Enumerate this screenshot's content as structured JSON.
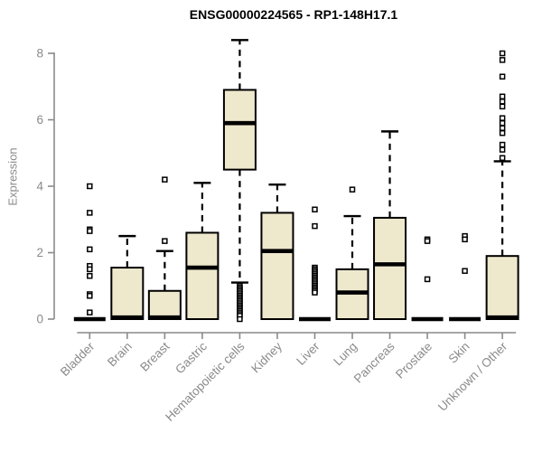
{
  "chart_data": {
    "type": "boxplot",
    "title": "ENSG00000224565 - RP1-148H17.1",
    "ylabel": "Expression",
    "xlabel": "",
    "ylim": [
      0,
      8.5
    ],
    "yticks": [
      0,
      2,
      4,
      6,
      8
    ],
    "grid": false,
    "legend": "none",
    "colors": {
      "box_fill": "#EEE8CD",
      "box_stroke": "#000000",
      "median": "#000000",
      "whisker": "#000000",
      "outlier_stroke": "#000000",
      "outlier_fill": "#ffffff",
      "axis": "#8a8a8a",
      "tick_label": "#8a8a8a",
      "title": "#000000",
      "background": "#ffffff"
    },
    "categories": [
      "Bladder",
      "Brain",
      "Breast",
      "Gastric",
      "Hematopoietic cells",
      "Kidney",
      "Liver",
      "Lung",
      "Pancreas",
      "Prostate",
      "Skin",
      "Unknown / Other"
    ],
    "boxes": [
      {
        "label": "Bladder",
        "q1": 0,
        "median": 0,
        "q3": 0,
        "whisker_low": 0,
        "whisker_high": 0,
        "outliers": [
          4.0,
          3.2,
          2.7,
          2.65,
          2.1,
          1.6,
          1.5,
          1.3,
          0.75,
          0.7,
          0.2
        ]
      },
      {
        "label": "Brain",
        "q1": 0,
        "median": 0.05,
        "q3": 1.55,
        "whisker_low": 0,
        "whisker_high": 2.5,
        "outliers": []
      },
      {
        "label": "Breast",
        "q1": 0,
        "median": 0.05,
        "q3": 0.85,
        "whisker_low": 0,
        "whisker_high": 2.05,
        "outliers": [
          4.2,
          2.35
        ]
      },
      {
        "label": "Gastric",
        "q1": 0,
        "median": 1.55,
        "q3": 2.6,
        "whisker_low": 0,
        "whisker_high": 4.1,
        "outliers": []
      },
      {
        "label": "Hematopoietic cells",
        "q1": 4.5,
        "median": 5.9,
        "q3": 6.9,
        "whisker_low": 1.1,
        "whisker_high": 8.4,
        "outliers": [
          1.0,
          0.95,
          0.9,
          0.85,
          0.8,
          0.75,
          0.7,
          0.65,
          0.6,
          0.55,
          0.5,
          0.45,
          0.4,
          0.35,
          0.3,
          0.25,
          0.2,
          0.15,
          0.1,
          0
        ]
      },
      {
        "label": "Kidney",
        "q1": 0,
        "median": 2.05,
        "q3": 3.2,
        "whisker_low": 0,
        "whisker_high": 4.05,
        "outliers": []
      },
      {
        "label": "Liver",
        "q1": 0,
        "median": 0,
        "q3": 0,
        "whisker_low": 0,
        "whisker_high": 0,
        "outliers": [
          3.3,
          2.8,
          1.55,
          1.5,
          1.45,
          1.4,
          1.35,
          1.3,
          1.25,
          1.2,
          1.15,
          1.1,
          1.05,
          1.0,
          0.95,
          0.9,
          0.85,
          0.8
        ]
      },
      {
        "label": "Lung",
        "q1": 0,
        "median": 0.8,
        "q3": 1.5,
        "whisker_low": 0,
        "whisker_high": 3.1,
        "outliers": [
          3.9
        ]
      },
      {
        "label": "Pancreas",
        "q1": 0,
        "median": 1.65,
        "q3": 3.05,
        "whisker_low": 0,
        "whisker_high": 5.65,
        "outliers": []
      },
      {
        "label": "Prostate",
        "q1": 0,
        "median": 0,
        "q3": 0,
        "whisker_low": 0,
        "whisker_high": 0,
        "outliers": [
          2.4,
          2.35,
          1.2
        ]
      },
      {
        "label": "Skin",
        "q1": 0,
        "median": 0,
        "q3": 0,
        "whisker_low": 0,
        "whisker_high": 0,
        "outliers": [
          2.5,
          2.4,
          1.45
        ]
      },
      {
        "label": "Unknown / Other",
        "q1": 0,
        "median": 0.05,
        "q3": 1.9,
        "whisker_low": 0,
        "whisker_high": 4.75,
        "outliers": [
          8.0,
          7.8,
          7.3,
          6.7,
          6.55,
          6.4,
          6.05,
          5.9,
          5.75,
          5.6,
          5.25,
          5.1,
          4.85
        ]
      }
    ]
  }
}
